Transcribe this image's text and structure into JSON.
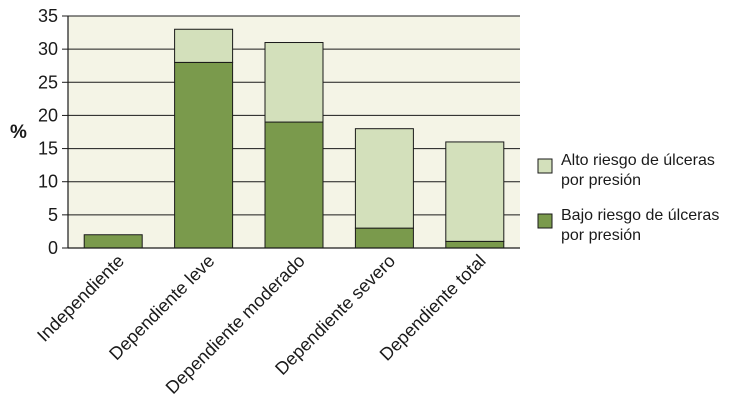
{
  "chart_data": {
    "type": "bar",
    "stacked": true,
    "ylabel": "%",
    "xlabel": "",
    "ylim": [
      0,
      35
    ],
    "yticks": [
      0,
      5,
      10,
      15,
      20,
      25,
      30,
      35
    ],
    "grid": true,
    "legend_position": "right",
    "categories": [
      "Independiente",
      "Dependiente leve",
      "Dependiente moderado",
      "Dependiente severo",
      "Dependiente total"
    ],
    "series": [
      {
        "name": "Bajo riesgo de úlceras por presión",
        "values": [
          2,
          28,
          19,
          3,
          1
        ],
        "color": "#7a9a4c"
      },
      {
        "name": "Alto riesgo de úlceras por presión",
        "values": [
          0,
          5,
          12,
          15,
          15
        ],
        "color": "#d3e0bb"
      }
    ],
    "legend": [
      {
        "line1": "Alto riesgo de úlceras",
        "line2": "por presión",
        "color": "#d3e0bb"
      },
      {
        "line1": "Bajo riesgo de úlceras",
        "line2": "por presión",
        "color": "#7a9a4c"
      }
    ],
    "colors": {
      "plot_background": "#f4f4e6",
      "grid": "#1a1a1a",
      "bar_outline": "#1a1a1a"
    }
  }
}
